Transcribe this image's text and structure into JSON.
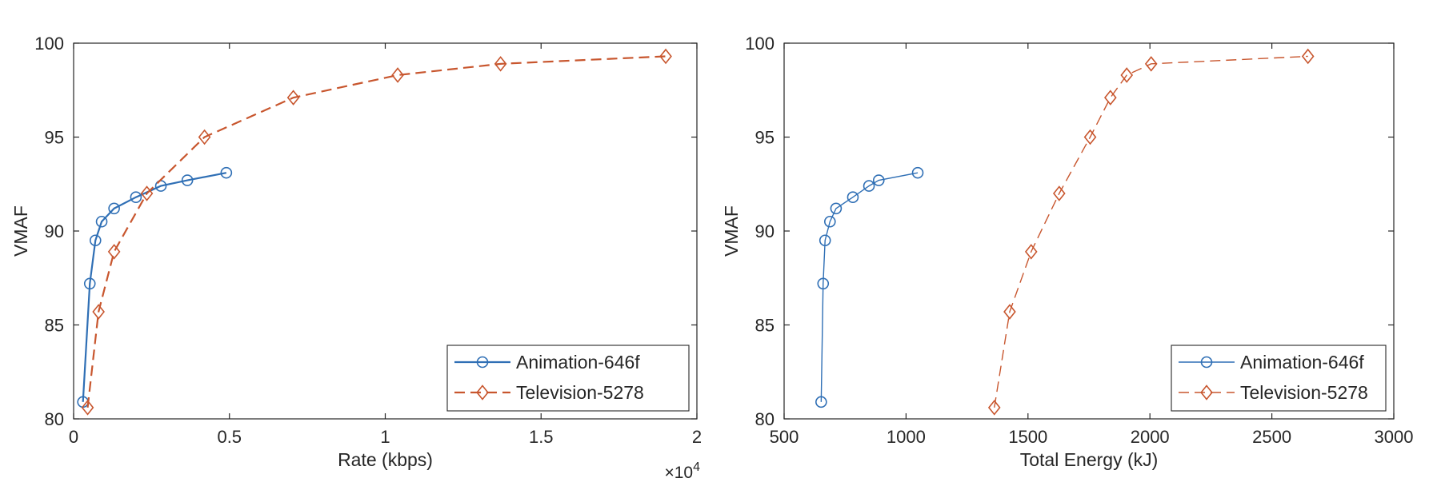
{
  "colors": {
    "series1": "#2f6fb5",
    "series2": "#c8562e",
    "axis": "#262626"
  },
  "chart_data": [
    {
      "type": "line",
      "xlabel": "Rate (kbps)",
      "ylabel": "VMAF",
      "x_multiplier_label": "10",
      "x_multiplier_exponent": "4",
      "xlim": [
        0,
        20000
      ],
      "ylim": [
        80,
        100
      ],
      "x_ticks": [
        0,
        5000,
        10000,
        15000,
        20000
      ],
      "x_tick_labels": [
        "0",
        "0.5",
        "1",
        "1.5",
        "2"
      ],
      "y_ticks": [
        80,
        85,
        90,
        95,
        100
      ],
      "y_tick_labels": [
        "80",
        "85",
        "90",
        "95",
        "100"
      ],
      "grid": false,
      "legend_position": "bottom-right",
      "series": [
        {
          "name": "Animation-646f",
          "marker": "circle",
          "line_style": "solid",
          "x": [
            300,
            520,
            700,
            900,
            1300,
            2000,
            2800,
            3650,
            4900
          ],
          "y": [
            80.9,
            87.2,
            89.5,
            90.5,
            91.2,
            91.8,
            92.4,
            92.7,
            93.1
          ]
        },
        {
          "name": "Television-5278",
          "marker": "diamond",
          "line_style": "dashed",
          "x": [
            450,
            800,
            1300,
            2350,
            4200,
            7050,
            10400,
            13700,
            19000
          ],
          "y": [
            80.6,
            85.7,
            88.9,
            92.0,
            95.0,
            97.1,
            98.3,
            98.9,
            99.3
          ]
        }
      ]
    },
    {
      "type": "line",
      "xlabel": "Total Energy (kJ)",
      "ylabel": "VMAF",
      "xlim": [
        500,
        3000
      ],
      "ylim": [
        80,
        100
      ],
      "x_ticks": [
        500,
        1000,
        1500,
        2000,
        2500,
        3000
      ],
      "x_tick_labels": [
        "500",
        "1000",
        "1500",
        "2000",
        "2500",
        "3000"
      ],
      "y_ticks": [
        80,
        85,
        90,
        95,
        100
      ],
      "y_tick_labels": [
        "80",
        "85",
        "90",
        "95",
        "100"
      ],
      "grid": false,
      "legend_position": "bottom-right",
      "series": [
        {
          "name": "Animation-646f",
          "marker": "circle",
          "line_style": "solid",
          "x": [
            652,
            660,
            668,
            688,
            713,
            782,
            848,
            888,
            1048
          ],
          "y": [
            80.9,
            87.2,
            89.5,
            90.5,
            91.2,
            91.8,
            92.4,
            92.7,
            93.1
          ]
        },
        {
          "name": "Television-5278",
          "marker": "diamond",
          "line_style": "dashed",
          "x": [
            1362,
            1425,
            1513,
            1628,
            1755,
            1838,
            1905,
            2005,
            2648
          ],
          "y": [
            80.6,
            85.7,
            88.9,
            92.0,
            95.0,
            97.1,
            98.3,
            98.9,
            99.3
          ]
        }
      ]
    }
  ]
}
